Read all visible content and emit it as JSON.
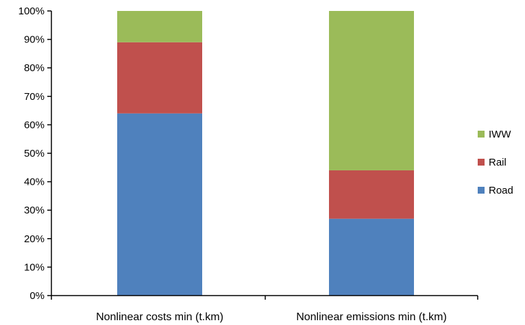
{
  "chart_data": {
    "type": "bar",
    "stacked": true,
    "categories": [
      "Nonlinear costs min (t.km)",
      "Nonlinear emissions min (t.km)"
    ],
    "series": [
      {
        "name": "Road",
        "values": [
          64,
          27
        ],
        "color": "#4F81BD"
      },
      {
        "name": "Rail",
        "values": [
          25,
          17
        ],
        "color": "#C0504D"
      },
      {
        "name": "IWW",
        "values": [
          11,
          56
        ],
        "color": "#9BBB59"
      }
    ],
    "ylim": [
      0,
      100
    ],
    "yticks": [
      "0%",
      "10%",
      "20%",
      "30%",
      "40%",
      "50%",
      "60%",
      "70%",
      "80%",
      "90%",
      "100%"
    ],
    "grid": false,
    "legend": {
      "position": "right",
      "order": [
        "IWW",
        "Rail",
        "Road"
      ]
    }
  }
}
